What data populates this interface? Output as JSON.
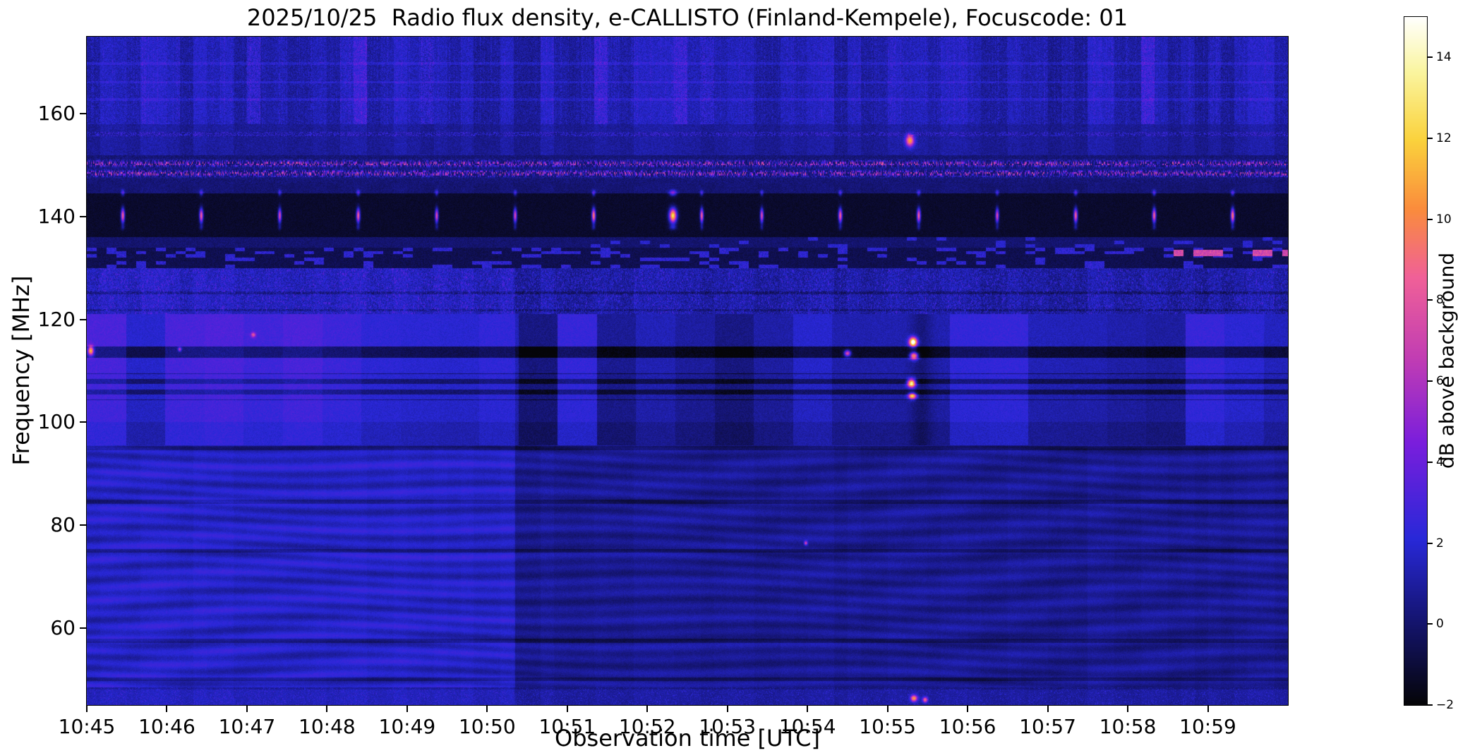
{
  "figure": {
    "background_color": "#ffffff"
  },
  "chart_data": {
    "type": "heatmap",
    "title": "2025/10/25  Radio flux density, e-CALLISTO (Finland-Kempele), Focuscode: 01",
    "xlabel": "Observation time [UTC]",
    "ylabel": "Frequency [MHz]",
    "x_span_minutes": 15,
    "x_start_label": "10:45",
    "x_tick_labels": [
      "10:45",
      "10:46",
      "10:47",
      "10:48",
      "10:49",
      "10:50",
      "10:51",
      "10:52",
      "10:53",
      "10:54",
      "10:55",
      "10:56",
      "10:57",
      "10:58",
      "10:59"
    ],
    "y_ticks_mhz": [
      60,
      80,
      100,
      120,
      140,
      160
    ],
    "y_range_mhz": [
      45,
      175
    ],
    "value_range_db": [
      -2,
      15
    ],
    "grid": false,
    "colorbar": {
      "label": "dB above background",
      "tick_values": [
        -2,
        0,
        2,
        4,
        6,
        8,
        10,
        12,
        14
      ],
      "tick_labels": [
        "−2",
        "0",
        "2",
        "4",
        "6",
        "8",
        "10",
        "12",
        "14"
      ],
      "colormap_stops": [
        {
          "pos": 0.0,
          "color": "#050508"
        },
        {
          "pos": 0.12,
          "color": "#14146E"
        },
        {
          "pos": 0.24,
          "color": "#2828D8"
        },
        {
          "pos": 0.38,
          "color": "#7A1EDC"
        },
        {
          "pos": 0.5,
          "color": "#C03CB4"
        },
        {
          "pos": 0.62,
          "color": "#F06098"
        },
        {
          "pos": 0.72,
          "color": "#FA8C3C"
        },
        {
          "pos": 0.82,
          "color": "#FAD23C"
        },
        {
          "pos": 0.92,
          "color": "#FAF5A0"
        },
        {
          "pos": 1.0,
          "color": "#FFFFFF"
        }
      ]
    },
    "features": {
      "background_split_minute": 5.35,
      "rfi_speckle_rows_mhz": [
        148.4,
        150.3
      ],
      "quiet_black_band_mhz": [
        136,
        144.5
      ],
      "blocky_band_mhz": [
        95.5,
        121
      ],
      "wavy_band_mhz": [
        48.5,
        95.5
      ],
      "dark_lines_mhz": [
        113.5,
        106.5,
        125.2
      ],
      "dark_column": {
        "t": 10.42,
        "w": 0.13,
        "depth": 1.0
      },
      "right_edge_dashes": {
        "freq_mhz": 132.9,
        "t_start_min": 13.5,
        "peak_db": 8
      },
      "periodic_bursts_140mhz": {
        "main_peak_mhz": 140.2,
        "secondary_peak_mhz": 144.6,
        "bursts": [
          {
            "t": 0.45,
            "db": 10,
            "w": 0.022
          },
          {
            "t": 1.43,
            "db": 10,
            "w": 0.022
          },
          {
            "t": 2.41,
            "db": 9,
            "w": 0.02
          },
          {
            "t": 3.39,
            "db": 10,
            "w": 0.022
          },
          {
            "t": 4.37,
            "db": 9,
            "w": 0.02
          },
          {
            "t": 5.35,
            "db": 9,
            "w": 0.02
          },
          {
            "t": 6.33,
            "db": 11,
            "w": 0.022
          },
          {
            "t": 7.32,
            "db": 14,
            "w": 0.045
          },
          {
            "t": 7.68,
            "db": 10,
            "w": 0.02
          },
          {
            "t": 8.43,
            "db": 9,
            "w": 0.02
          },
          {
            "t": 9.41,
            "db": 10,
            "w": 0.022
          },
          {
            "t": 10.39,
            "db": 10,
            "w": 0.022
          },
          {
            "t": 11.37,
            "db": 9,
            "w": 0.02
          },
          {
            "t": 12.35,
            "db": 10,
            "w": 0.022
          },
          {
            "t": 13.33,
            "db": 10,
            "w": 0.022
          },
          {
            "t": 14.31,
            "db": 11,
            "w": 0.022
          }
        ]
      },
      "bright_events": [
        {
          "t": 10.32,
          "f": 115.6,
          "wt": 0.05,
          "wf": 0.9,
          "db": 16
        },
        {
          "t": 10.33,
          "f": 112.9,
          "wt": 0.05,
          "wf": 0.7,
          "db": 12
        },
        {
          "t": 10.3,
          "f": 107.6,
          "wt": 0.05,
          "wf": 0.8,
          "db": 15
        },
        {
          "t": 10.31,
          "f": 105.1,
          "wt": 0.05,
          "wf": 0.6,
          "db": 12
        },
        {
          "t": 9.5,
          "f": 113.4,
          "wt": 0.04,
          "wf": 0.6,
          "db": 9
        },
        {
          "t": 10.28,
          "f": 154.8,
          "wt": 0.05,
          "wf": 1.1,
          "db": 10
        },
        {
          "t": 10.33,
          "f": 46.3,
          "wt": 0.04,
          "wf": 0.6,
          "db": 10
        },
        {
          "t": 10.47,
          "f": 46.0,
          "wt": 0.03,
          "wf": 0.5,
          "db": 8
        },
        {
          "t": 0.05,
          "f": 113.9,
          "wt": 0.035,
          "wf": 0.9,
          "db": 11
        },
        {
          "t": 1.16,
          "f": 114.2,
          "wt": 0.02,
          "wf": 0.4,
          "db": 6
        },
        {
          "t": 2.08,
          "f": 117.0,
          "wt": 0.03,
          "wf": 0.5,
          "db": 5
        },
        {
          "t": 8.98,
          "f": 76.5,
          "wt": 0.02,
          "wf": 0.4,
          "db": 7
        }
      ]
    }
  }
}
